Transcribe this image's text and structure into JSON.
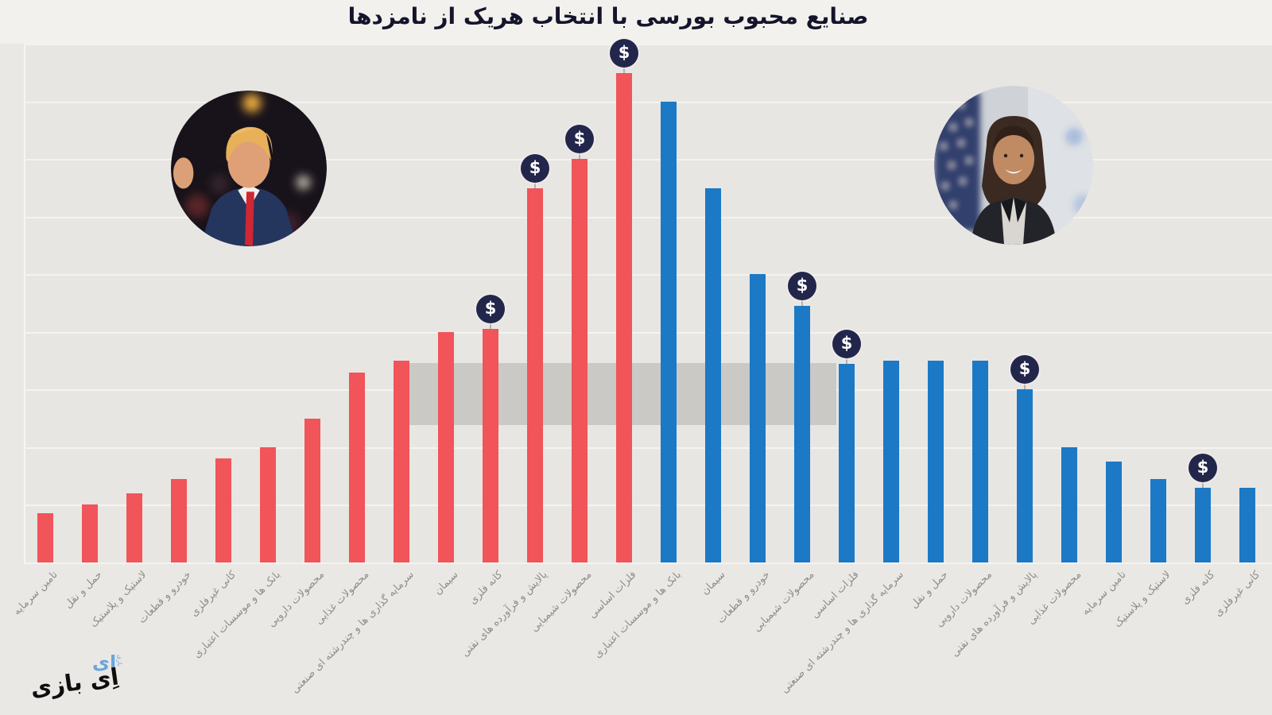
{
  "title": "صنایع محبوب بورسی با انتخاب هریک از نامزدها",
  "watermark": {
    "text": "اِی بازی",
    "glyph": "ای",
    "mini": "بازی"
  },
  "icons": {
    "dollar_badge_glyph": "$",
    "left_photo": "trump-portrait-photo",
    "right_photo": "harris-portrait-photo"
  },
  "colors": {
    "red_bars": "#f15459",
    "blue_bars": "#1b79c5",
    "dollar_badge": "#23264b",
    "dollar_glyph": "#ffffff",
    "highlight_band": "#cbc9c6",
    "plot_background": "#e8e6e3",
    "gridline": "#f4f3f0",
    "axis_label": "#8f8c89",
    "title_text": "#14142b"
  },
  "chart_data": {
    "type": "bar",
    "title": "صنایع محبوب بورسی با انتخاب هریک از نامزدها",
    "xlabel": "",
    "ylabel": "",
    "y_axis_labels_visible": false,
    "value_unit": "gridline-units (no numeric axis shown; 1 unit = one gridline step)",
    "ylim": [
      0,
      9
    ],
    "grid": true,
    "legend_position": "none (red bars under Trump photo, blue bars under Harris photo)",
    "categories": [
      "تامین سرمایه",
      "حمل و نقل",
      "لاستیک و پلاستیک",
      "خودرو و قطعات",
      "کانی غیرفلزی",
      "بانک ها و موسسات اعتباری",
      "محصولات دارویی",
      "محصولات غذایی",
      "سرمایه گذاری ها و چندرشته ای صنعتی",
      "سیمان",
      "کانه فلزی",
      "پالایش و فرآورده های نفتی",
      "محصولات شیمیایی",
      "فلزات اساسی",
      "بانک ها و موسسات اعتباری",
      "سیمان",
      "خودرو و قطعات",
      "محصولات شیمیایی",
      "فلزات اساسی",
      "سرمایه گذاری ها و چندرشته ای صنعتی",
      "حمل و نقل",
      "محصولات دارویی",
      "پالایش و فرآورده های نفتی",
      "محصولات غذایی",
      "تامین سرمایه",
      "لاستیک و پلاستیک",
      "کانه فلزی",
      "کانی غیرفلزی"
    ],
    "values": [
      0.85,
      1.0,
      1.2,
      1.45,
      1.8,
      2.0,
      2.5,
      3.3,
      3.5,
      4.0,
      4.05,
      6.5,
      7.0,
      8.5,
      8.0,
      6.5,
      5.0,
      4.45,
      3.45,
      3.5,
      3.5,
      3.5,
      3.0,
      2.0,
      1.75,
      1.45,
      1.3,
      1.3
    ],
    "bar_colors": [
      "red",
      "red",
      "red",
      "red",
      "red",
      "red",
      "red",
      "red",
      "red",
      "red",
      "red",
      "red",
      "red",
      "red",
      "blue",
      "blue",
      "blue",
      "blue",
      "blue",
      "blue",
      "blue",
      "blue",
      "blue",
      "blue",
      "blue",
      "blue",
      "blue",
      "blue"
    ],
    "dollar_badge_indexes": [
      10,
      11,
      12,
      13,
      17,
      18,
      22,
      26
    ]
  }
}
